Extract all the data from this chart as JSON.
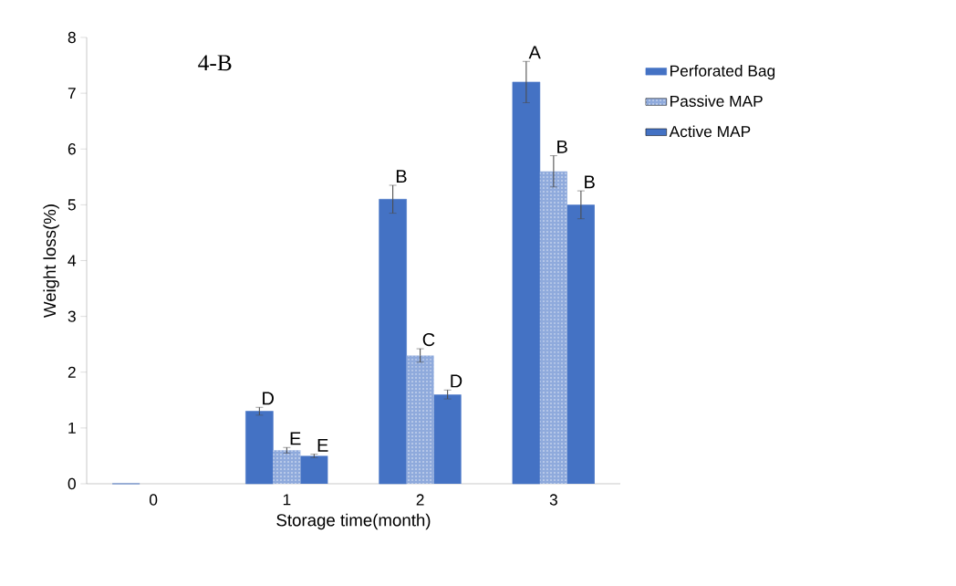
{
  "chart_data": {
    "type": "bar",
    "title": "4-B",
    "xlabel": "Storage time(month)",
    "ylabel": "Weight loss(%)",
    "categories": [
      "0",
      "1",
      "2",
      "3"
    ],
    "series": [
      {
        "name": "Perforated Bag",
        "color": "#4472c4",
        "values": [
          0,
          1.3,
          5.1,
          7.2
        ],
        "errors": [
          null,
          0.07,
          0.25,
          0.37
        ]
      },
      {
        "name": "Passive MAP",
        "color": "#8faadc",
        "values": [
          0,
          0.6,
          2.3,
          5.6
        ],
        "errors": [
          null,
          0.05,
          0.12,
          0.28
        ]
      },
      {
        "name": "Active MAP",
        "color": "#4472c4",
        "values": [
          0,
          0.5,
          1.6,
          5.0
        ],
        "errors": [
          null,
          0.03,
          0.08,
          0.25
        ]
      }
    ],
    "ylim": [
      0,
      8
    ],
    "yticks": [
      0,
      1,
      2,
      3,
      4,
      5,
      6,
      7,
      8
    ],
    "grid": false,
    "legend": "right",
    "annotations": [
      "D",
      "E",
      "E",
      "B",
      "C",
      "D",
      "A",
      "B",
      "B"
    ]
  }
}
